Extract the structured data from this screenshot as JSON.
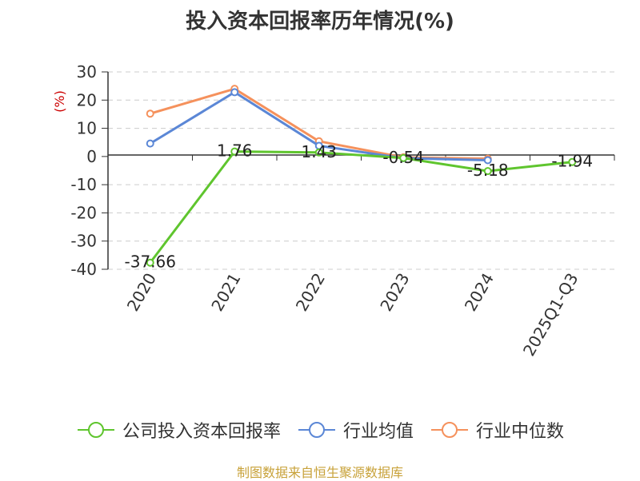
{
  "chart_data": {
    "type": "line",
    "title": "投入资本回报率历年情况(%)",
    "ylabel": "(%)",
    "categories": [
      "2020",
      "2021",
      "2022",
      "2023",
      "2024",
      "2025Q1-Q3"
    ],
    "ylim": [
      -40,
      30
    ],
    "yticks": [
      30,
      20,
      10,
      0,
      -10,
      -20,
      -30,
      -40
    ],
    "grid": true,
    "legend_position": "bottom",
    "series": [
      {
        "name": "公司投入资本回报率",
        "color": "#5fc52e",
        "values": [
          -37.66,
          1.76,
          1.43,
          -0.54,
          -5.18,
          -1.94
        ],
        "labels": [
          "-37.66",
          "1.76",
          "1.43",
          "-0.54",
          "-5.18",
          "-1.94"
        ]
      },
      {
        "name": "行业均值",
        "color": "#5b87d6",
        "values": [
          4.6,
          22.8,
          3.8,
          -0.6,
          -1.3,
          null
        ]
      },
      {
        "name": "行业中位数",
        "color": "#f5915c",
        "values": [
          15.2,
          24.0,
          5.4,
          -0.3,
          -0.8,
          null
        ]
      }
    ]
  },
  "source": "制图数据来自恒生聚源数据库"
}
